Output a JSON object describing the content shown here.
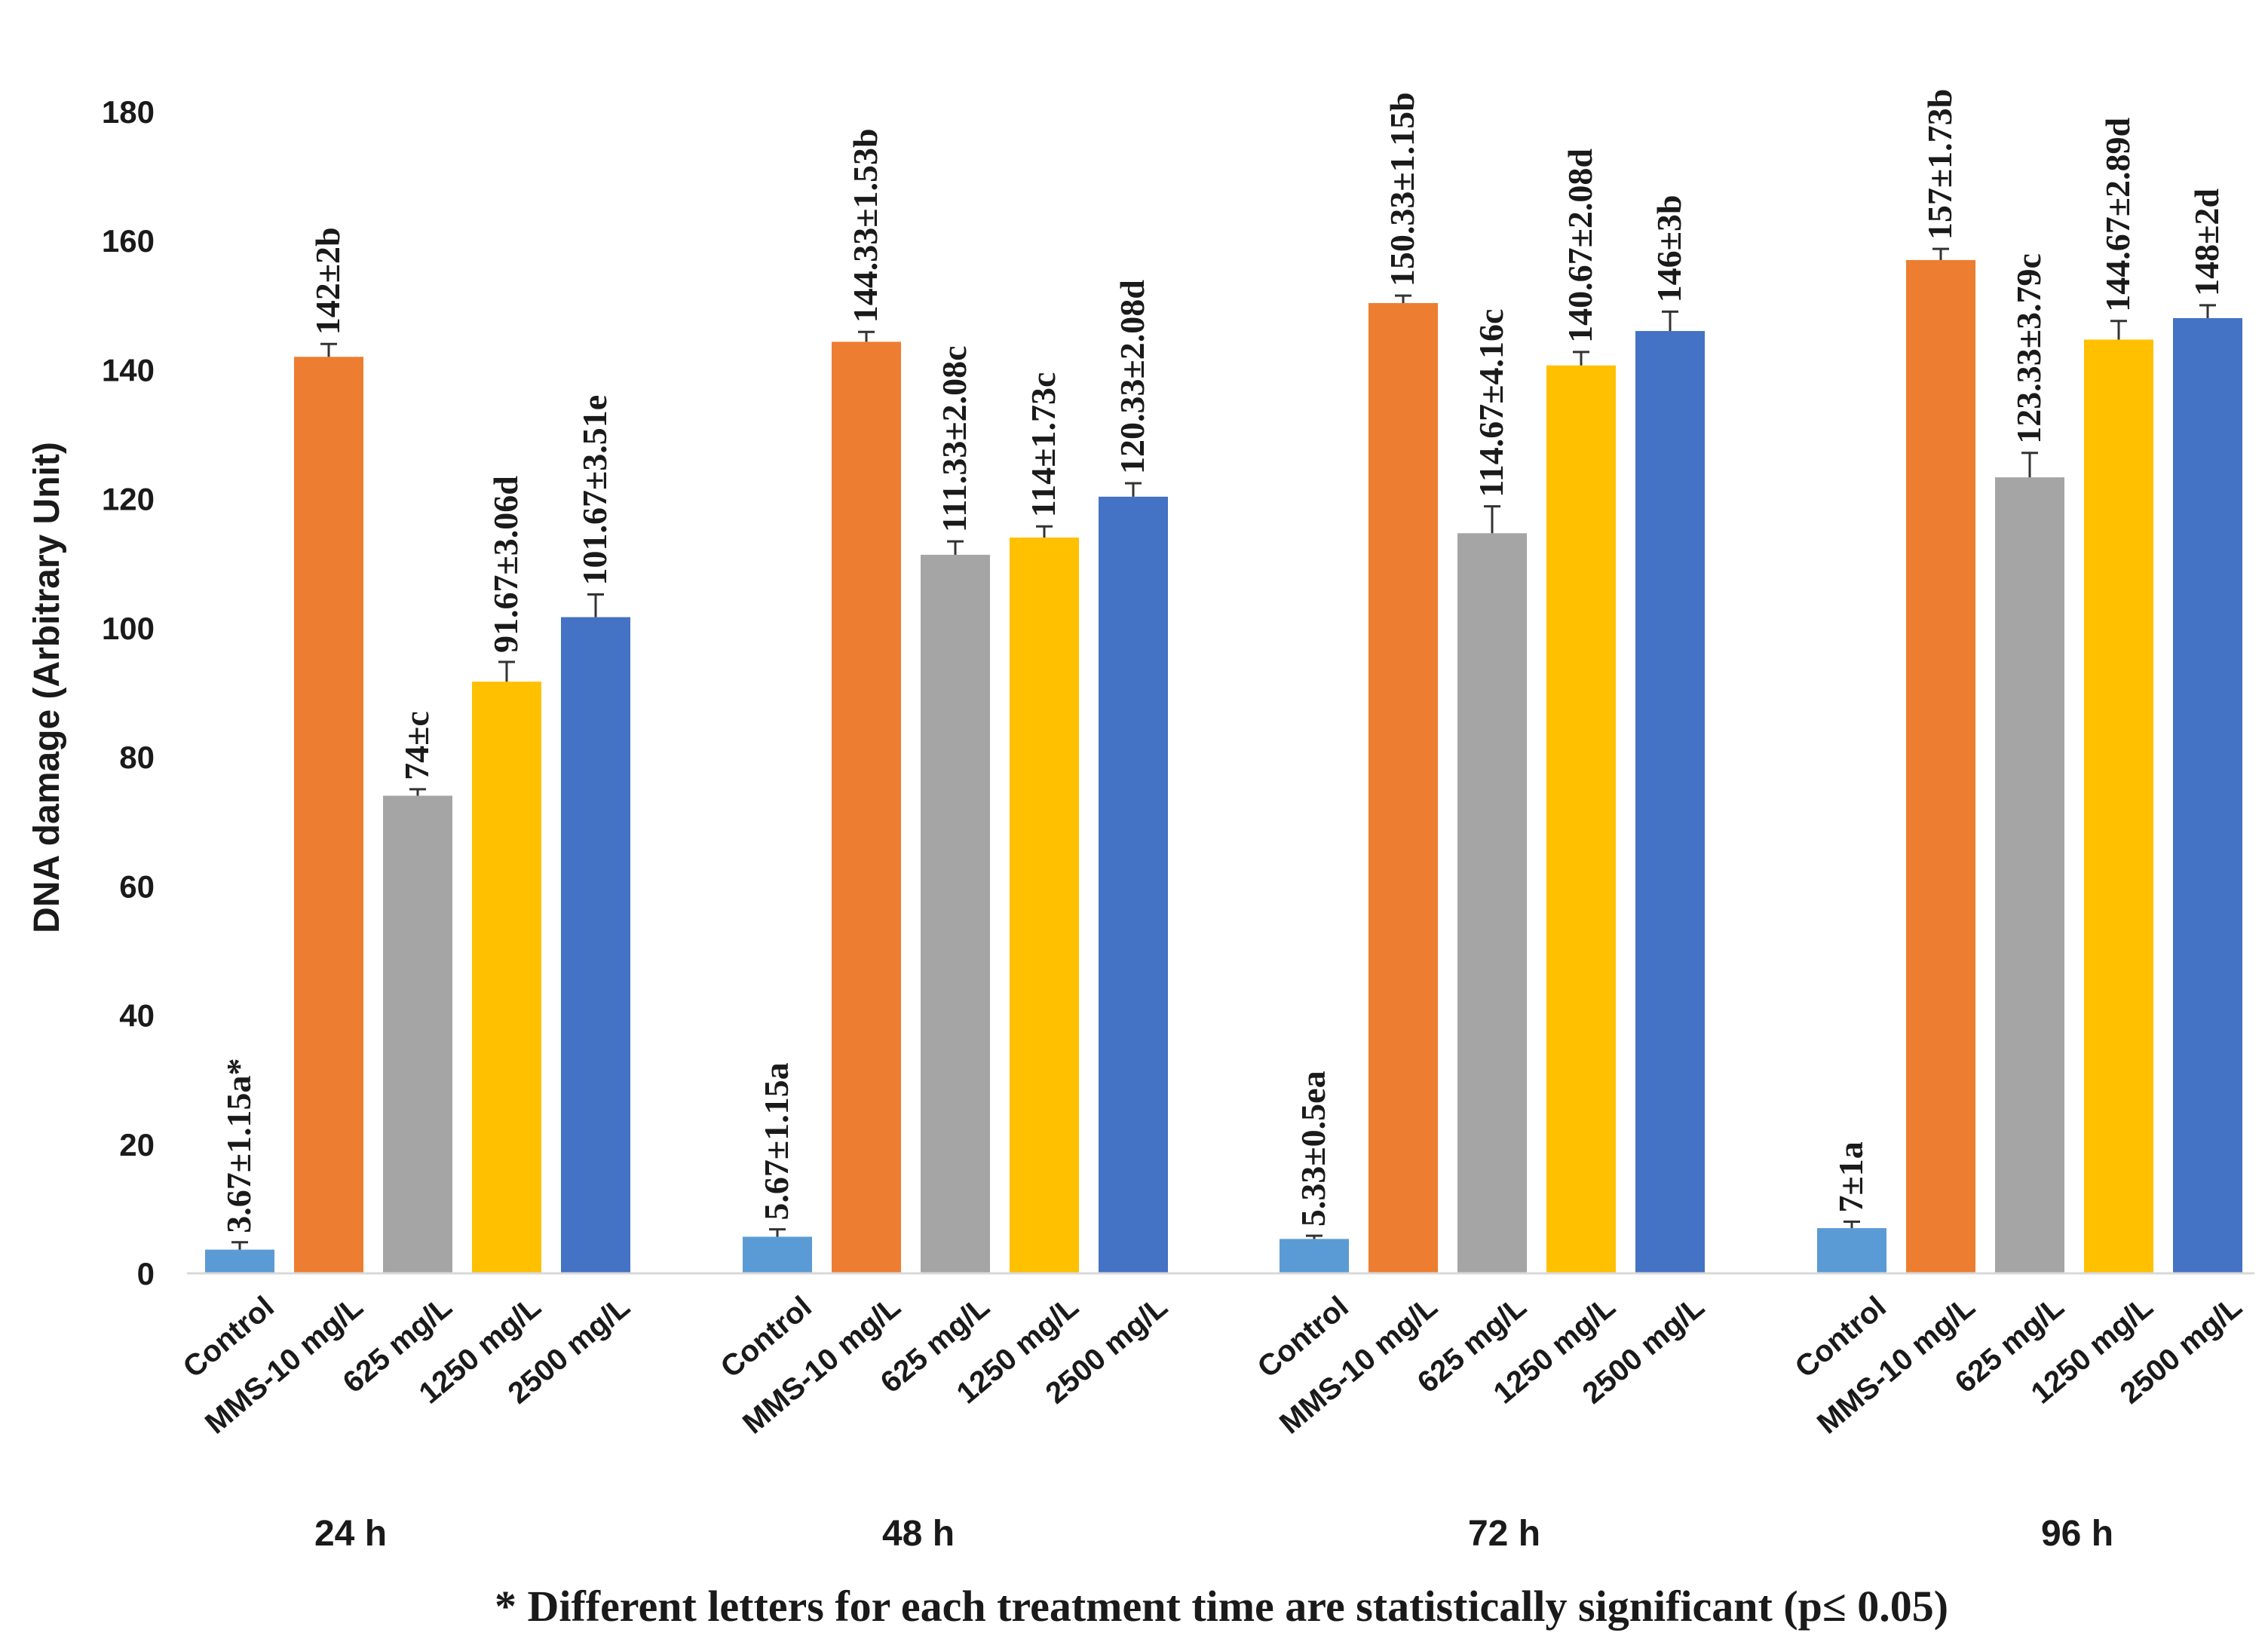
{
  "chart_data": {
    "type": "bar",
    "ylabel": "DNA damage (Arbitrary Unit)",
    "ylim": [
      0,
      180
    ],
    "yticks": [
      "0",
      "20",
      "40",
      "60",
      "80",
      "100",
      "120",
      "140",
      "160",
      "180"
    ],
    "grid": false,
    "footnote": "* Different letters for each treatment time are statistically significant (p≤ 0.05)",
    "categories": [
      "Control",
      "MMS-10 mg/L",
      "625  mg/L",
      "1250  mg/L",
      "2500  mg/L"
    ],
    "colors": [
      "#5b9bd5",
      "#ed7d31",
      "#a5a5a5",
      "#ffc000",
      "#4472c4"
    ],
    "groups": [
      {
        "name": "24 h",
        "values": [
          3.67,
          142,
          74,
          91.67,
          101.67
        ],
        "errors": [
          1.15,
          2,
          1,
          3.06,
          3.51
        ],
        "labels": [
          "3.67±1.15a*",
          "142±2b",
          "74±c",
          "91.67±3.06d",
          "101.67±3.51e"
        ]
      },
      {
        "name": "48 h",
        "values": [
          5.67,
          144.33,
          111.33,
          114,
          120.33
        ],
        "errors": [
          1.15,
          1.53,
          2.08,
          1.73,
          2.08
        ],
        "labels": [
          "5.67±1.15a",
          "144.33±1.53b",
          "111.33±2.08c",
          "114±1.73c",
          "120.33±2.08d"
        ]
      },
      {
        "name": "72 h",
        "values": [
          5.33,
          150.33,
          114.67,
          140.67,
          146
        ],
        "errors": [
          0.5,
          1.15,
          4.16,
          2.08,
          3
        ],
        "labels": [
          "5.33±0.5ea",
          "150.33±1.15b",
          "114.67±4.16c",
          "140.67±2.08d",
          "146±3b"
        ]
      },
      {
        "name": "96 h",
        "values": [
          7,
          157,
          123.33,
          144.67,
          148
        ],
        "errors": [
          1,
          1.73,
          3.79,
          2.89,
          2
        ],
        "labels": [
          "7±1a",
          "157±1.73b",
          "123.33±3.79c",
          "144.67±2.89d",
          "148±2d"
        ]
      }
    ]
  }
}
